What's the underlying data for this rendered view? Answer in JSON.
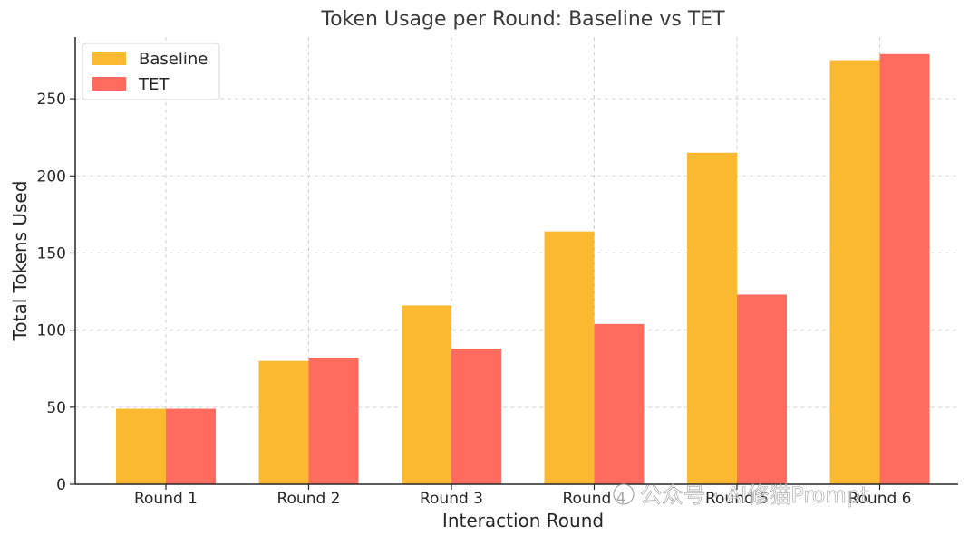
{
  "chart_data": {
    "type": "bar",
    "title": "Token Usage per Round: Baseline vs TET",
    "xlabel": "Interaction Round",
    "ylabel": "Total Tokens Used",
    "categories": [
      "Round 1",
      "Round 2",
      "Round 3",
      "Round 4",
      "Round 5",
      "Round 6"
    ],
    "series": [
      {
        "name": "Baseline",
        "values": [
          49,
          80,
          116,
          164,
          215,
          275
        ],
        "color": "#fbb931"
      },
      {
        "name": "TET",
        "values": [
          49,
          82,
          88,
          104,
          123,
          279
        ],
        "color": "#ff6b5e"
      }
    ],
    "ylim": [
      0,
      290
    ],
    "yticks": [
      0,
      50,
      100,
      150,
      200,
      250
    ],
    "grid": true,
    "legend_position": "top-left"
  },
  "watermark": {
    "text": "公众号 · AI修猫Prompt"
  }
}
